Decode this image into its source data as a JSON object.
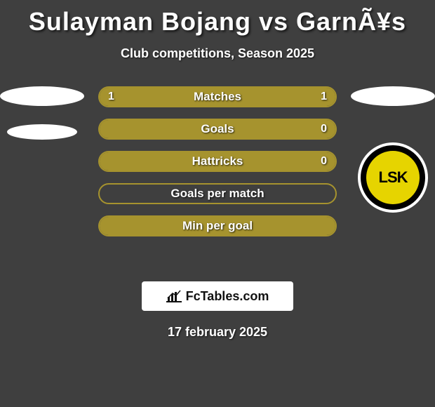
{
  "header": {
    "title": "Sulayman Bojang vs GarnÃ¥s",
    "subtitle": "Club competitions, Season 2025"
  },
  "left_player": {
    "placeholders": 2
  },
  "right_player": {
    "logo_text": "LSK",
    "logo_bg": "#000000",
    "logo_badge": "#e6d400",
    "logo_ring": "#ffffff"
  },
  "bars": [
    {
      "label": "Matches",
      "left_value": "1",
      "right_value": "1",
      "left_pct": 50,
      "right_pct": 50,
      "color": "#a6932e",
      "show_values": true
    },
    {
      "label": "Goals",
      "left_value": "",
      "right_value": "0",
      "left_pct": 100,
      "right_pct": 0,
      "color": "#a6932e",
      "show_values": true
    },
    {
      "label": "Hattricks",
      "left_value": "",
      "right_value": "0",
      "left_pct": 100,
      "right_pct": 0,
      "color": "#a6932e",
      "show_values": true
    },
    {
      "label": "Goals per match",
      "left_value": "",
      "right_value": "",
      "left_pct": 0,
      "right_pct": 0,
      "color": "#a6932e",
      "show_values": false
    },
    {
      "label": "Min per goal",
      "left_value": "",
      "right_value": "",
      "left_pct": 0,
      "right_pct": 100,
      "color": "#a6932e",
      "show_values": false
    }
  ],
  "watermark": {
    "text": "FcTables.com"
  },
  "date": "17 february 2025",
  "colors": {
    "background": "#3f3f3f",
    "text": "#ffffff"
  }
}
